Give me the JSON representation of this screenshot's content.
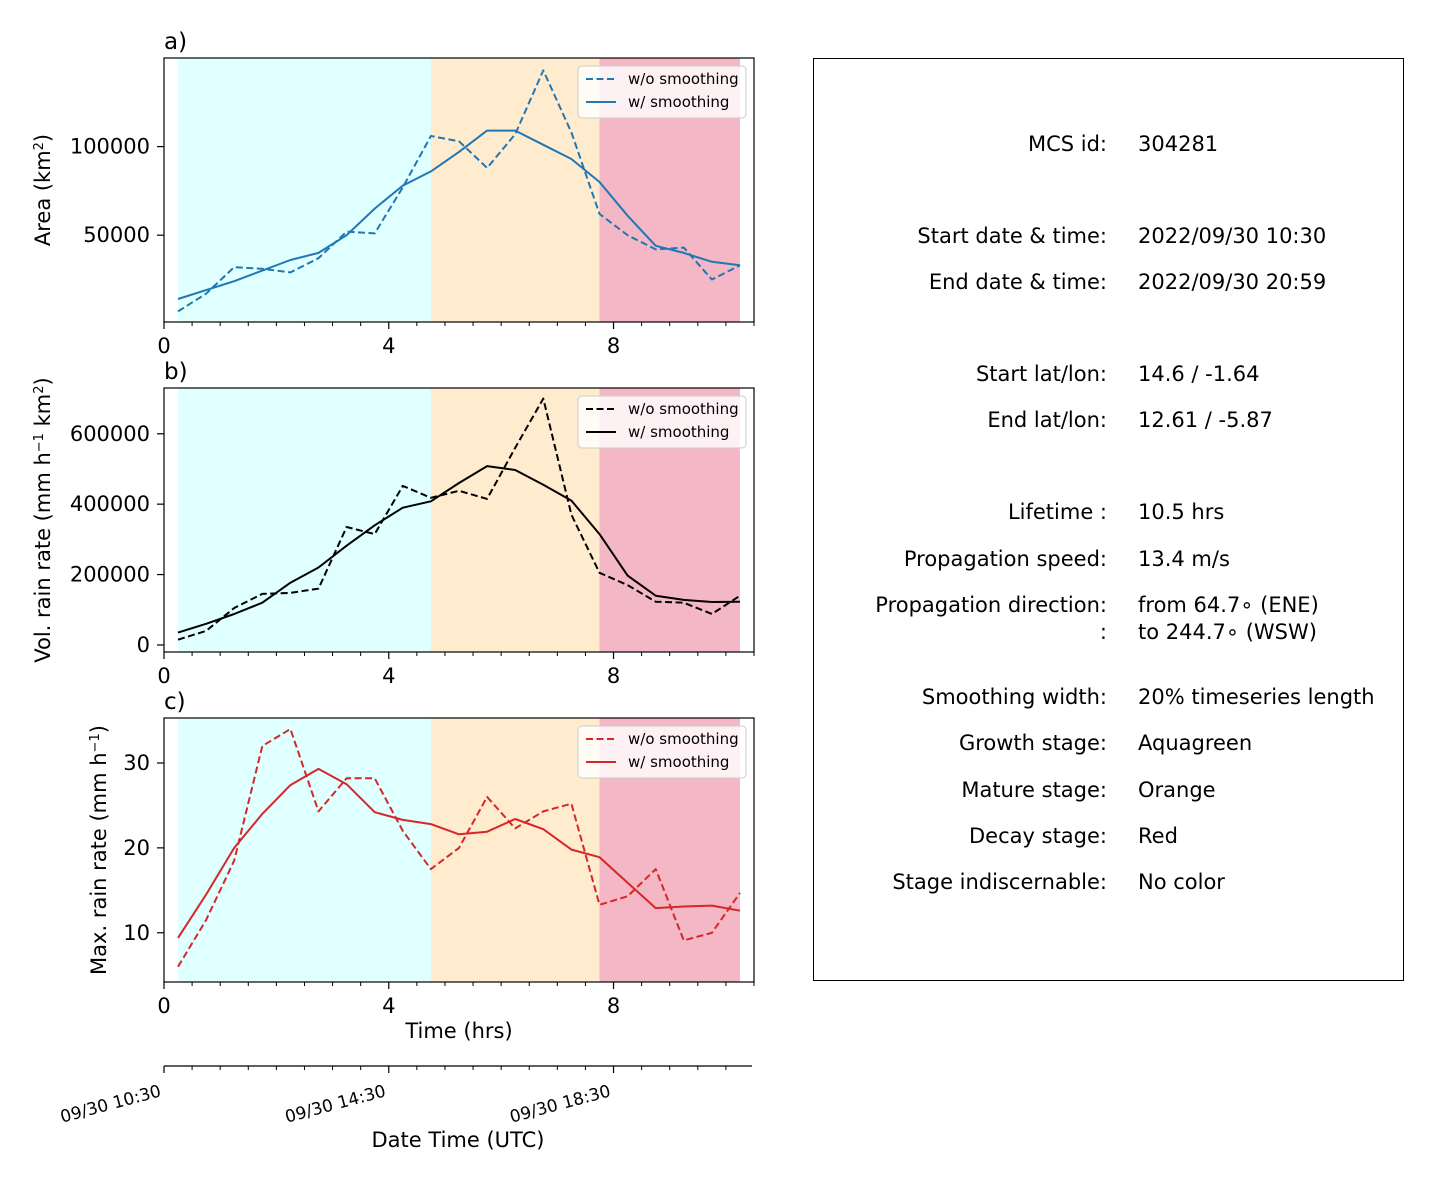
{
  "chart_data": [
    {
      "panel": "a)",
      "type": "line",
      "ylabel": "Area  (km²)",
      "xlabel": "",
      "xlim": [
        0,
        10.5
      ],
      "ylim": [
        1000,
        150000
      ],
      "xticks": [
        0,
        4,
        8
      ],
      "xtick_labels": [
        "0",
        "4",
        "8"
      ],
      "yticks": [
        50000,
        100000
      ],
      "ytick_labels": [
        "50000",
        "100000"
      ],
      "legend": "top-right",
      "color": "#1f77b4",
      "series": [
        {
          "name": "w/o smoothing",
          "style": "dashed",
          "x": [
            0.25,
            0.75,
            1.25,
            1.75,
            2.25,
            2.75,
            3.25,
            3.75,
            4.25,
            4.75,
            5.25,
            5.75,
            6.25,
            6.75,
            7.25,
            7.75,
            8.25,
            8.75,
            9.25,
            9.75,
            10.25
          ],
          "y": [
            7000,
            17000,
            32000,
            31000,
            29000,
            37000,
            52000,
            51000,
            77000,
            106000,
            103000,
            88000,
            107000,
            143000,
            108000,
            62000,
            50000,
            42000,
            43000,
            25000,
            33000
          ]
        },
        {
          "name": "w/ smoothing",
          "style": "solid",
          "x": [
            0.25,
            0.75,
            1.25,
            1.75,
            2.25,
            2.75,
            3.25,
            3.75,
            4.25,
            4.75,
            5.25,
            5.75,
            6.25,
            6.75,
            7.25,
            7.75,
            8.25,
            8.75,
            9.25,
            9.75,
            10.25
          ],
          "y": [
            14000,
            19000,
            24000,
            30000,
            36000,
            40000,
            50000,
            65000,
            78000,
            86000,
            97000,
            109000,
            109000,
            101000,
            93000,
            80000,
            61000,
            44000,
            40000,
            35000,
            33000
          ]
        }
      ]
    },
    {
      "panel": "b)",
      "type": "line",
      "ylabel": "Vol. rain rate (mm h⁻¹ km²)",
      "xlabel": "",
      "xlim": [
        0,
        10.5
      ],
      "ylim": [
        -20000,
        730000
      ],
      "xticks": [
        0,
        4,
        8
      ],
      "xtick_labels": [
        "0",
        "4",
        "8"
      ],
      "yticks": [
        0,
        200000,
        400000,
        600000
      ],
      "ytick_labels": [
        "0",
        "200000",
        "400000",
        "600000"
      ],
      "legend": "top-right",
      "color": "#000000",
      "series": [
        {
          "name": "w/o smoothing",
          "style": "dashed",
          "x": [
            0.25,
            0.75,
            1.25,
            1.75,
            2.25,
            2.75,
            3.25,
            3.75,
            4.25,
            4.75,
            5.25,
            5.75,
            6.25,
            6.75,
            7.25,
            7.75,
            8.25,
            8.75,
            9.25,
            9.75,
            10.25
          ],
          "y": [
            15000,
            40000,
            105000,
            145000,
            148000,
            160000,
            335000,
            315000,
            452000,
            418000,
            438000,
            415000,
            560000,
            700000,
            370000,
            205000,
            170000,
            123000,
            120000,
            88000,
            140000
          ]
        },
        {
          "name": "w/ smoothing",
          "style": "solid",
          "x": [
            0.25,
            0.75,
            1.25,
            1.75,
            2.25,
            2.75,
            3.25,
            3.75,
            4.25,
            4.75,
            5.25,
            5.75,
            6.25,
            6.75,
            7.25,
            7.75,
            8.25,
            8.75,
            9.25,
            9.75,
            10.25
          ],
          "y": [
            35000,
            60000,
            88000,
            120000,
            177000,
            220000,
            282000,
            340000,
            390000,
            408000,
            460000,
            508000,
            497000,
            455000,
            410000,
            315000,
            197000,
            140000,
            128000,
            122000,
            123000
          ]
        }
      ]
    },
    {
      "panel": "c)",
      "type": "line",
      "ylabel": "Max. rain rate  (mm h⁻¹)",
      "xlabel": "Time (hrs)",
      "xlim": [
        0,
        10.5
      ],
      "ylim": [
        4.2,
        35.3
      ],
      "xticks": [
        0,
        4,
        8
      ],
      "xtick_labels": [
        "0",
        "4",
        "8"
      ],
      "yticks": [
        10,
        20,
        30
      ],
      "ytick_labels": [
        "10",
        "20",
        "30"
      ],
      "legend": "top-right",
      "color": "#d62728",
      "series": [
        {
          "name": "w/o smoothing",
          "style": "dashed",
          "x": [
            0.25,
            0.75,
            1.25,
            1.75,
            2.25,
            2.75,
            3.25,
            3.75,
            4.25,
            4.75,
            5.25,
            5.75,
            6.25,
            6.75,
            7.25,
            7.75,
            8.25,
            8.75,
            9.25,
            9.75,
            10.25
          ],
          "y": [
            6.0,
            11.5,
            18.5,
            32.0,
            34.0,
            24.3,
            28.2,
            28.2,
            22.0,
            17.5,
            20.0,
            26.0,
            22.3,
            24.3,
            25.2,
            13.3,
            14.3,
            17.5,
            9.1,
            10.0,
            14.7
          ]
        },
        {
          "name": "w/ smoothing",
          "style": "solid",
          "x": [
            0.25,
            0.75,
            1.25,
            1.75,
            2.25,
            2.75,
            3.25,
            3.75,
            4.25,
            4.75,
            5.25,
            5.75,
            6.25,
            6.75,
            7.25,
            7.75,
            8.25,
            8.75,
            9.25,
            9.75,
            10.25
          ],
          "y": [
            9.4,
            14.5,
            20.0,
            24.0,
            27.4,
            29.3,
            27.5,
            24.2,
            23.3,
            22.8,
            21.6,
            21.9,
            23.4,
            22.2,
            19.8,
            18.9,
            15.9,
            12.9,
            13.1,
            13.2,
            12.6
          ]
        }
      ]
    }
  ],
  "stages": [
    {
      "name": "Growth",
      "x0": 0.25,
      "x1": 4.75,
      "color": "#e0ffff"
    },
    {
      "name": "Mature",
      "x0": 4.75,
      "x1": 7.75,
      "color": "#ffebcd"
    },
    {
      "name": "Decay",
      "x0": 7.75,
      "x1": 10.25,
      "color": "#f3b7c5"
    }
  ],
  "datetime_axis": {
    "label": "Date Time (UTC)",
    "ticks": [
      0,
      4,
      8
    ],
    "tick_labels": [
      "09/30 10:30",
      "09/30 14:30",
      "09/30 18:30"
    ]
  },
  "info": {
    "mcs_id_key": "MCS id:",
    "mcs_id_val": "304281",
    "start_dt_key": "Start date & time:",
    "start_dt_val": "2022/09/30 10:30",
    "end_dt_key": "End date & time:",
    "end_dt_val": "2022/09/30 20:59",
    "start_ll_key": "Start lat/lon:",
    "start_ll_val": "14.6 / -1.64",
    "end_ll_key": "End lat/lon:",
    "end_ll_val": "12.61 / -5.87",
    "lifetime_key": "Lifetime :",
    "lifetime_val": "10.5 hrs",
    "speed_key": "Propagation speed:",
    "speed_val": "13.4 m/s",
    "dir_key": "Propagation direction:",
    "dir_val": "from  64.7∘ (ENE)",
    "dir2_key": ":",
    "dir2_val": "to   244.7∘ (WSW)",
    "smooth_key": "Smoothing width:",
    "smooth_val": "20% timeseries length",
    "growth_key": "Growth stage:",
    "growth_val": "Aquagreen",
    "mature_key": "Mature stage:",
    "mature_val": "Orange",
    "decay_key": "Decay stage:",
    "decay_val": "Red",
    "indisc_key": "Stage indiscernable:",
    "indisc_val": "No color"
  }
}
